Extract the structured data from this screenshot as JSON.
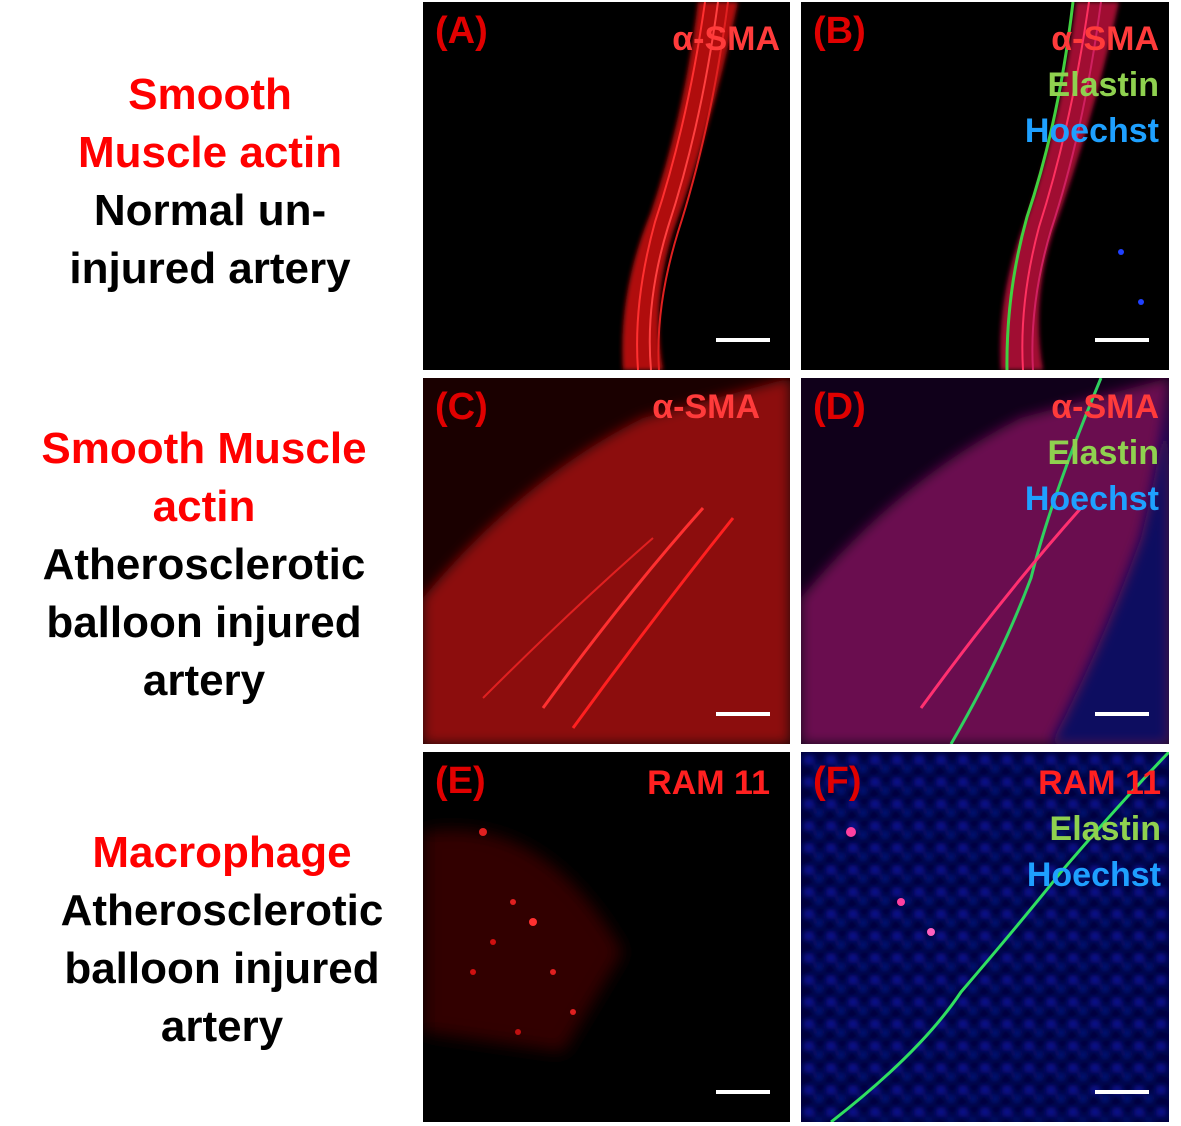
{
  "rows": [
    {
      "lines": [
        {
          "text": "Smooth",
          "color": "red"
        },
        {
          "text": "Muscle actin",
          "color": "red"
        },
        {
          "text": "Normal un-",
          "color": "black"
        },
        {
          "text": "injured artery",
          "color": "black"
        }
      ]
    },
    {
      "lines": [
        {
          "text": "Smooth Muscle",
          "color": "red"
        },
        {
          "text": "actin",
          "color": "red"
        },
        {
          "text": "Atherosclerotic",
          "color": "black"
        },
        {
          "text": "balloon injured",
          "color": "black"
        },
        {
          "text": "artery",
          "color": "black"
        }
      ]
    },
    {
      "lines": [
        {
          "text": "Macrophage",
          "color": "red"
        },
        {
          "text": "Atherosclerotic",
          "color": "black"
        },
        {
          "text": "balloon injured",
          "color": "black"
        },
        {
          "text": "artery",
          "color": "black"
        }
      ]
    }
  ],
  "panels": [
    {
      "label": "(A)",
      "channels": [
        {
          "text": "α-SMA",
          "color": "#ff3b3b"
        }
      ]
    },
    {
      "label": "(B)",
      "channels": [
        {
          "text": "α-SMA",
          "color": "#ff3b3b"
        },
        {
          "text": "Elastin",
          "color": "#8fd14f"
        },
        {
          "text": "Hoechst",
          "color": "#1ea0ff"
        }
      ]
    },
    {
      "label": "(C)",
      "channels": [
        {
          "text": "α-SMA",
          "color": "#ff3b3b"
        }
      ]
    },
    {
      "label": "(D)",
      "channels": [
        {
          "text": "α-SMA",
          "color": "#ff3b3b"
        },
        {
          "text": "Elastin",
          "color": "#8fd14f"
        },
        {
          "text": "Hoechst",
          "color": "#1ea0ff"
        }
      ]
    },
    {
      "label": "(E)",
      "channels": [
        {
          "text": "RAM 11",
          "color": "#ff2020"
        }
      ]
    },
    {
      "label": "(F)",
      "channels": [
        {
          "text": "RAM 11",
          "color": "#ff2020"
        },
        {
          "text": "Elastin",
          "color": "#8fd14f"
        },
        {
          "text": "Hoechst",
          "color": "#1ea0ff"
        }
      ]
    }
  ]
}
